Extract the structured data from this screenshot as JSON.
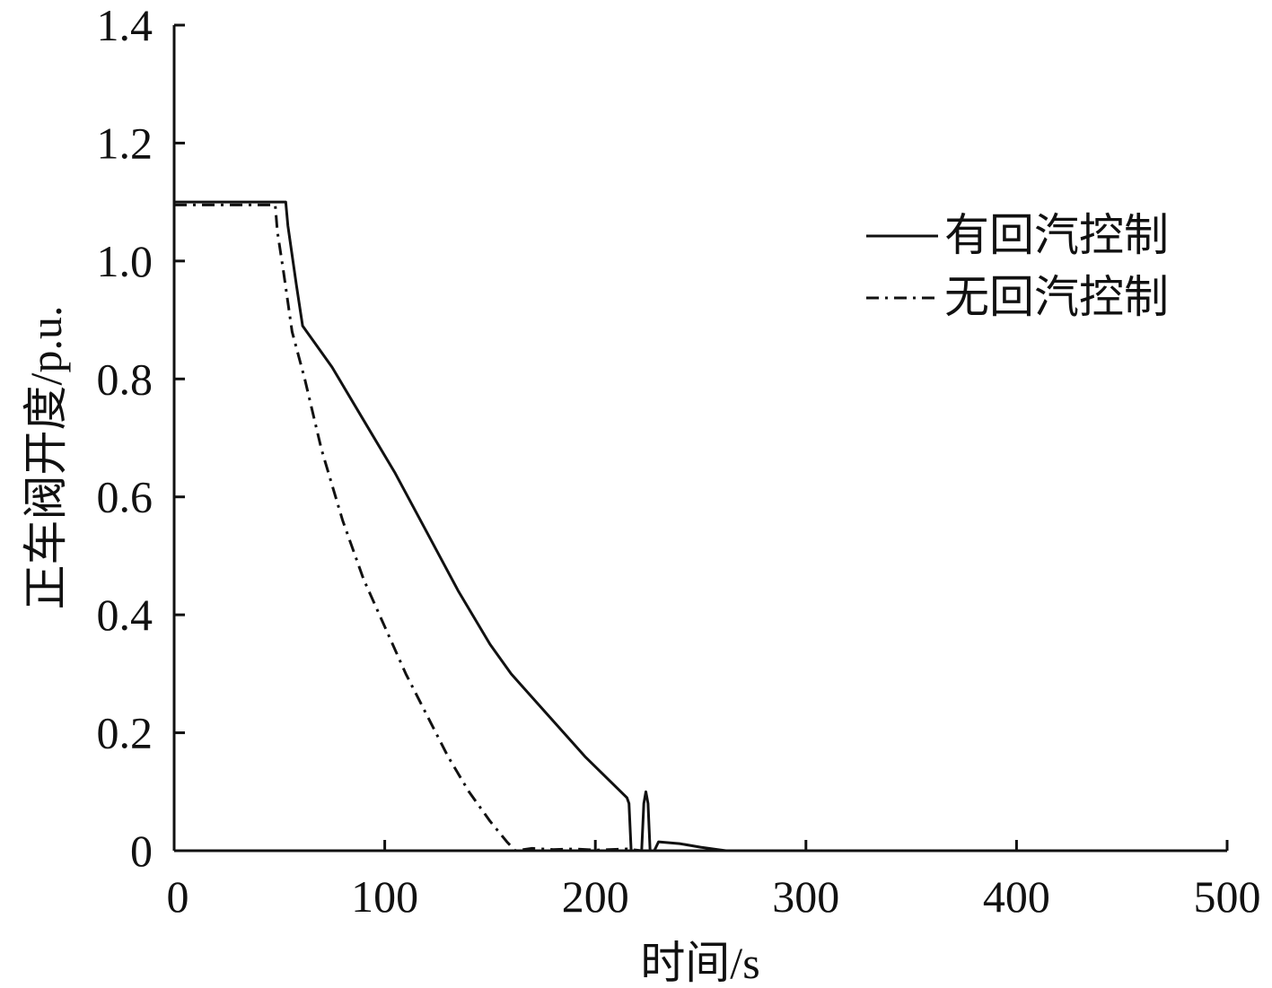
{
  "chart_data": {
    "type": "line",
    "xlabel": "时间/s",
    "ylabel": "正车阀开度/p.u.",
    "xlim": [
      0,
      500
    ],
    "ylim": [
      0,
      1.4
    ],
    "xticks": [
      "0",
      "100",
      "200",
      "300",
      "400",
      "500"
    ],
    "yticks": [
      "0",
      "0.2",
      "0.4",
      "0.6",
      "0.8",
      "1.0",
      "1.2",
      "1.4"
    ],
    "grid": false,
    "legend_position": "top-right",
    "series": [
      {
        "name": "有回汽控制",
        "style": "solid",
        "color": "#111111",
        "points": [
          [
            0,
            1.1
          ],
          [
            53,
            1.1
          ],
          [
            54,
            1.06
          ],
          [
            58,
            0.96
          ],
          [
            61,
            0.89
          ],
          [
            63,
            0.88
          ],
          [
            75,
            0.82
          ],
          [
            90,
            0.73
          ],
          [
            105,
            0.64
          ],
          [
            120,
            0.54
          ],
          [
            135,
            0.44
          ],
          [
            150,
            0.35
          ],
          [
            160,
            0.3
          ],
          [
            175,
            0.24
          ],
          [
            195,
            0.16
          ],
          [
            215,
            0.09
          ],
          [
            216,
            0.08
          ],
          [
            217,
            0.0
          ],
          [
            222,
            0.0
          ],
          [
            223,
            0.08
          ],
          [
            224,
            0.1
          ],
          [
            225,
            0.08
          ],
          [
            226,
            0.0
          ],
          [
            228,
            0.0
          ],
          [
            230,
            0.015
          ],
          [
            240,
            0.012
          ],
          [
            250,
            0.006
          ],
          [
            258,
            0.002
          ],
          [
            262,
            0.0
          ],
          [
            500,
            0.0
          ]
        ]
      },
      {
        "name": "无回汽控制",
        "style": "dashdot",
        "color": "#111111",
        "points": [
          [
            0,
            1.095
          ],
          [
            48,
            1.095
          ],
          [
            49,
            1.05
          ],
          [
            52,
            0.98
          ],
          [
            56,
            0.88
          ],
          [
            62,
            0.8
          ],
          [
            70,
            0.68
          ],
          [
            80,
            0.56
          ],
          [
            90,
            0.46
          ],
          [
            100,
            0.38
          ],
          [
            110,
            0.3
          ],
          [
            120,
            0.23
          ],
          [
            130,
            0.16
          ],
          [
            140,
            0.1
          ],
          [
            150,
            0.05
          ],
          [
            158,
            0.015
          ],
          [
            162,
            0.0
          ],
          [
            170,
            0.004
          ],
          [
            180,
            0.002
          ],
          [
            190,
            0.003
          ],
          [
            200,
            0.001
          ],
          [
            215,
            0.003
          ],
          [
            222,
            0.0
          ],
          [
            500,
            0.0
          ]
        ]
      }
    ]
  }
}
